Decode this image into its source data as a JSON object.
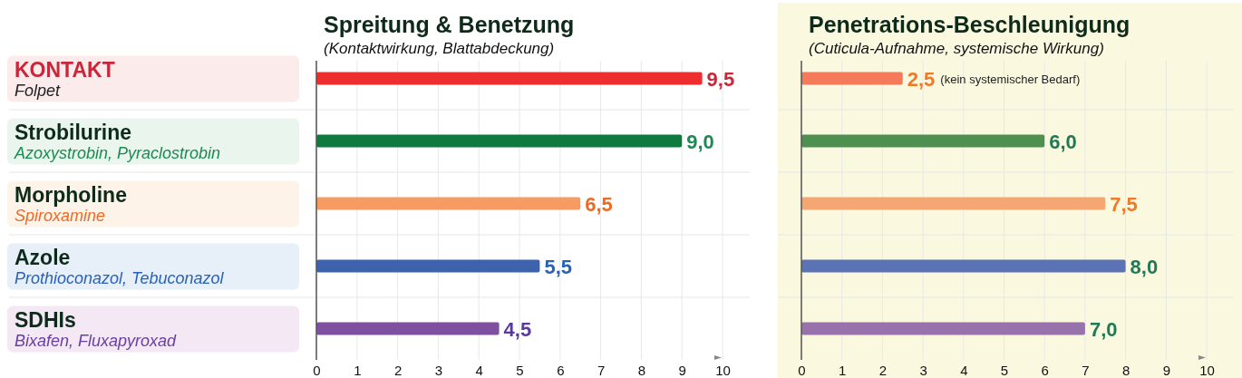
{
  "chart_data": [
    {
      "type": "bar",
      "orientation": "horizontal",
      "title": "Spreitung & Benetzung",
      "subtitle": "(Kontaktwirkung, Blattabdeckung)",
      "categories": [
        "KONTAKT\nFolpet",
        "Strobilurine\nAzoxystrobin, Pyraclostrobin",
        "Morpholine\nSpiroxamine",
        "Azole\nProthioconazol, Tebuconazol",
        "SDHIs\nBixafen, Fluxapyroxad"
      ],
      "values": [
        9.5,
        9.0,
        6.5,
        5.5,
        4.5
      ],
      "colors": [
        "#ee2e2e",
        "#0f7a3e",
        "#f59c65",
        "#3d63ad",
        "#7f4fa0"
      ],
      "value_labels": [
        "9,5",
        "9,0",
        "6,5",
        "5,5",
        "4,5"
      ],
      "xlim": [
        0,
        10
      ],
      "xticks": [
        0,
        1,
        2,
        3,
        4,
        5,
        6,
        7,
        8,
        9,
        10
      ],
      "grid": "x"
    },
    {
      "type": "bar",
      "orientation": "horizontal",
      "title": "Penetrations-Beschleunigung",
      "subtitle": "(Cuticula-Aufnahme, systemische Wirkung)",
      "categories": [
        null,
        null,
        null,
        null,
        null
      ],
      "values": [
        2.5,
        6.0,
        7.5,
        8.0,
        7.0
      ],
      "colors": [
        "#f47a5a",
        "#4e9050",
        "#f5a773",
        "#5b72b5",
        "#9873ab"
      ],
      "value_labels": [
        "2,5",
        "6,0",
        "7,5",
        "8,0",
        "7,0"
      ],
      "annotations": [
        "(kein systemischer Bedarf)"
      ],
      "tick_labels": "x",
      "xlim": [
        0,
        10
      ],
      "xticks": [
        0,
        1,
        2,
        3,
        4,
        5,
        6,
        7,
        8,
        9,
        10
      ],
      "grid": "x"
    }
  ]
}
